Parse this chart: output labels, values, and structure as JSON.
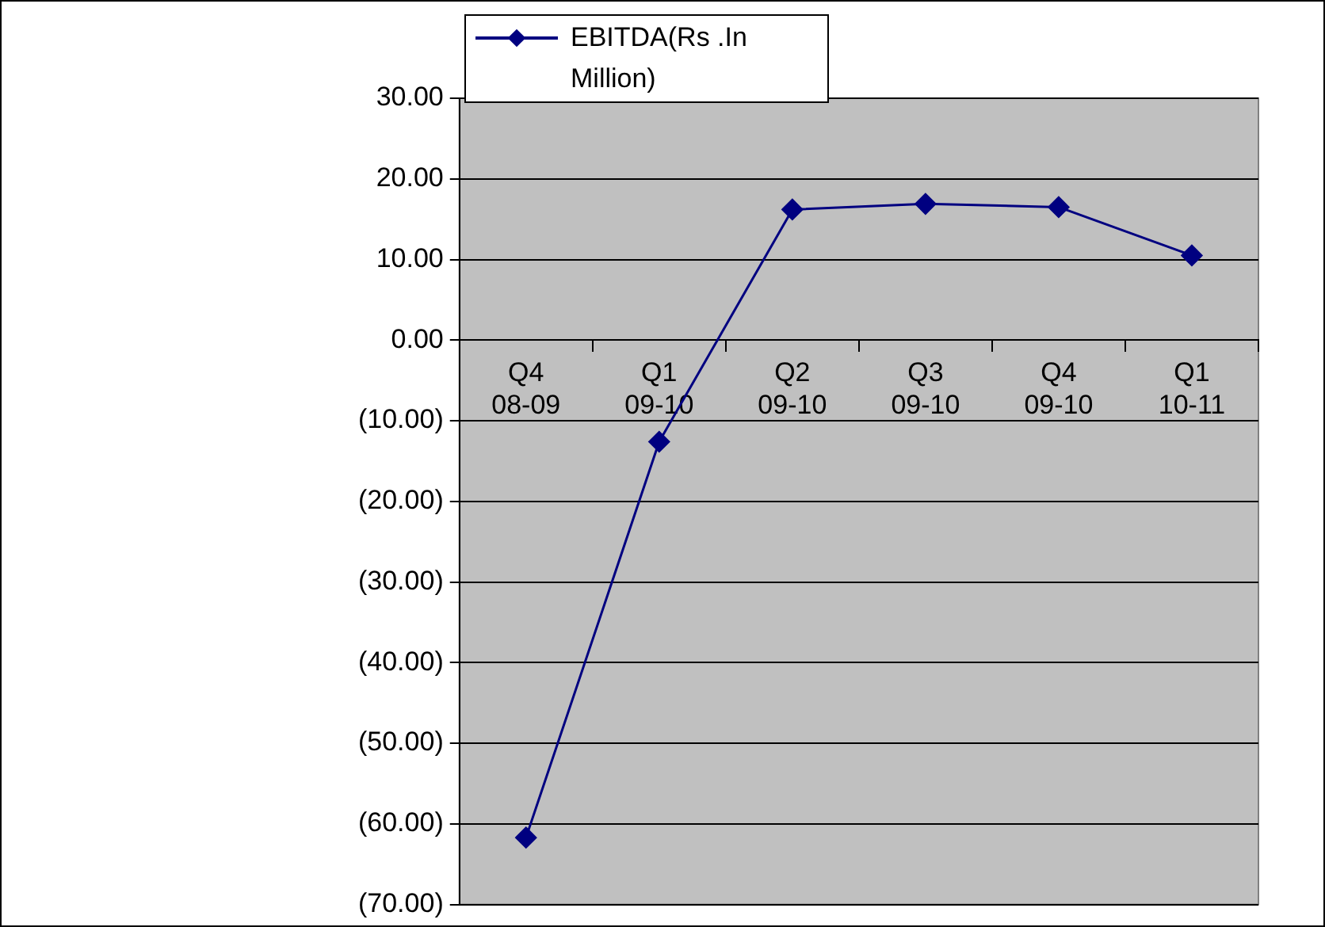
{
  "chart_data": {
    "type": "line",
    "categories": [
      "Q4 08-09",
      "Q1 09-10",
      "Q2 09-10",
      "Q3 09-10",
      "Q4 09-10",
      "Q1 10-11"
    ],
    "series": [
      {
        "name": "EBITDA(Rs .In Million)",
        "color": "#000080",
        "values": [
          -61.7,
          -12.6,
          16.2,
          16.9,
          16.5,
          10.5
        ]
      }
    ],
    "ylim": [
      -70,
      30
    ],
    "yticks": [
      {
        "value": 30,
        "label": "30.00"
      },
      {
        "value": 20,
        "label": "20.00"
      },
      {
        "value": 10,
        "label": "10.00"
      },
      {
        "value": 0,
        "label": "0.00"
      },
      {
        "value": -10,
        "label": "(10.00)"
      },
      {
        "value": -20,
        "label": "(20.00)"
      },
      {
        "value": -30,
        "label": "(30.00)"
      },
      {
        "value": -40,
        "label": "(40.00)"
      },
      {
        "value": -50,
        "label": "(50.00)"
      },
      {
        "value": -60,
        "label": "(60.00)"
      },
      {
        "value": -70,
        "label": "(70.00)"
      }
    ],
    "grid": "y",
    "legend": "top left",
    "marker": "diamond",
    "line_style": "solid"
  }
}
